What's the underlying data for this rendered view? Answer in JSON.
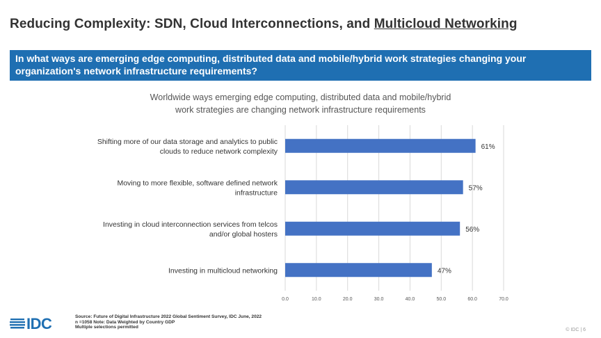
{
  "slide": {
    "title_prefix": "Reducing Complexity: SDN, Cloud Interconnections, and ",
    "title_underlined": "Multicloud Networking",
    "question": "In what ways are emerging edge computing, distributed data and mobile/hybrid work strategies changing your organization's network infrastructure requirements?"
  },
  "chart_data": {
    "type": "bar",
    "orientation": "horizontal",
    "title_line1": "Worldwide ways emerging edge computing, distributed data and mobile/hybrid",
    "title_line2": "work strategies are changing  network infrastructure requirements",
    "categories": [
      [
        "Shifting more of our data storage and analytics to public",
        "clouds to reduce network complexity"
      ],
      [
        "Moving to more flexible, software defined network",
        "infrastructure"
      ],
      [
        "Investing in cloud interconnection services from telcos",
        "and/or global hosters"
      ],
      [
        "Investing in multicloud networking"
      ]
    ],
    "values": [
      61,
      57,
      56,
      47
    ],
    "value_labels": [
      "61%",
      "57%",
      "56%",
      "47%"
    ],
    "xlim": [
      0,
      70
    ],
    "xticks": [
      "0.0",
      "10.0",
      "20.0",
      "30.0",
      "40.0",
      "50.0",
      "60.0",
      "70.0"
    ],
    "grid": true,
    "bar_color": "#4472c4",
    "grid_color": "#d9d9d9"
  },
  "source": {
    "line1": "Source: Future of Digital Infrastructure 2022 Global Sentiment Survey, IDC June, 2022",
    "line2": "n =1058   Note: Data Weighted by Country GDP",
    "line3": "Multiple selections permitted"
  },
  "logo": {
    "text": "IDC",
    "icon": "idc-globe-icon",
    "color": "#1f6fb2"
  },
  "footer": {
    "text": "© IDC  |  6"
  }
}
